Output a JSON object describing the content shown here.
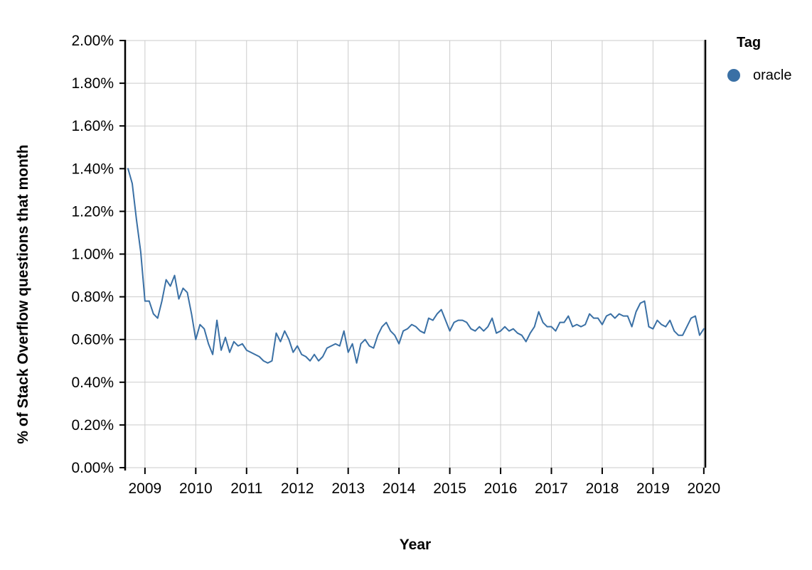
{
  "figure": {
    "y_axis_title": "% of Stack Overflow questions that month",
    "x_axis_title": "Year",
    "legend": {
      "title": "Tag",
      "items": [
        {
          "label": "oracle",
          "marker": "circle-icon",
          "color": "#3a70a5"
        }
      ]
    }
  },
  "chart_data": {
    "type": "line",
    "title": "",
    "xlabel": "Year",
    "ylabel": "% of Stack Overflow questions that month",
    "xlim": [
      2008.61,
      2020.03
    ],
    "ylim": [
      0,
      2
    ],
    "grid": true,
    "grid_color": "#cbcbcb",
    "axis_color": "#000000",
    "background_color": "#ffffff",
    "legend_position": "right",
    "x_ticks": {
      "values": [
        2009,
        2010,
        2011,
        2012,
        2013,
        2014,
        2015,
        2016,
        2017,
        2018,
        2019,
        2020
      ],
      "labels": [
        "2009",
        "2010",
        "2011",
        "2012",
        "2013",
        "2014",
        "2015",
        "2016",
        "2017",
        "2018",
        "2019",
        "2020"
      ]
    },
    "y_ticks": {
      "values": [
        0,
        0.2,
        0.4,
        0.6,
        0.8,
        1.0,
        1.2,
        1.4,
        1.6,
        1.8,
        2.0
      ],
      "labels": [
        "0.00%",
        "0.20%",
        "0.40%",
        "0.60%",
        "0.80%",
        "1.00%",
        "1.20%",
        "1.40%",
        "1.60%",
        "1.80%",
        "2.00%"
      ]
    },
    "series": [
      {
        "name": "oracle",
        "color": "#3a70a5",
        "unit": "percent_of_questions",
        "x_start": "2008-09",
        "x_step_months": 1,
        "values": [
          1.4,
          1.33,
          1.16,
          1.01,
          0.78,
          0.78,
          0.72,
          0.7,
          0.78,
          0.88,
          0.85,
          0.9,
          0.79,
          0.84,
          0.82,
          0.72,
          0.6,
          0.67,
          0.65,
          0.58,
          0.53,
          0.69,
          0.55,
          0.61,
          0.54,
          0.59,
          0.57,
          0.58,
          0.55,
          0.54,
          0.53,
          0.52,
          0.5,
          0.49,
          0.5,
          0.63,
          0.59,
          0.64,
          0.6,
          0.54,
          0.57,
          0.53,
          0.52,
          0.5,
          0.53,
          0.5,
          0.52,
          0.56,
          0.57,
          0.58,
          0.57,
          0.64,
          0.54,
          0.58,
          0.49,
          0.58,
          0.6,
          0.57,
          0.56,
          0.62,
          0.66,
          0.68,
          0.64,
          0.62,
          0.58,
          0.64,
          0.65,
          0.67,
          0.66,
          0.64,
          0.63,
          0.7,
          0.69,
          0.72,
          0.74,
          0.69,
          0.64,
          0.68,
          0.69,
          0.69,
          0.68,
          0.65,
          0.64,
          0.66,
          0.64,
          0.66,
          0.7,
          0.63,
          0.64,
          0.66,
          0.64,
          0.65,
          0.63,
          0.62,
          0.59,
          0.63,
          0.66,
          0.73,
          0.68,
          0.66,
          0.66,
          0.64,
          0.68,
          0.68,
          0.71,
          0.66,
          0.67,
          0.66,
          0.67,
          0.72,
          0.7,
          0.7,
          0.67,
          0.71,
          0.72,
          0.7,
          0.72,
          0.71,
          0.71,
          0.66,
          0.73,
          0.77,
          0.78,
          0.66,
          0.65,
          0.69,
          0.67,
          0.66,
          0.69,
          0.64,
          0.62,
          0.62,
          0.66,
          0.7,
          0.71,
          0.62,
          0.65
        ]
      }
    ]
  }
}
